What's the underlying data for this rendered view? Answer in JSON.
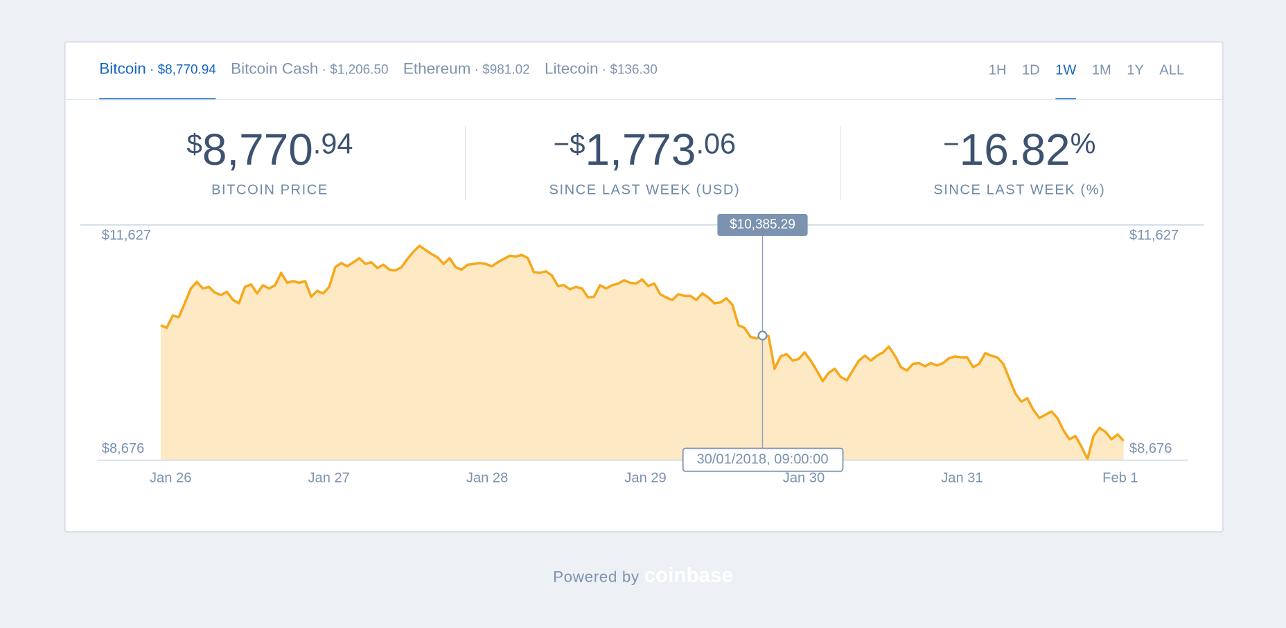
{
  "tab_separator": "·",
  "tabs": [
    {
      "name": "Bitcoin",
      "price": "$8,770.94",
      "active": true
    },
    {
      "name": "Bitcoin Cash",
      "price": "$1,206.50",
      "active": false
    },
    {
      "name": "Ethereum",
      "price": "$981.02",
      "active": false
    },
    {
      "name": "Litecoin",
      "price": "$136.30",
      "active": false
    }
  ],
  "periods": [
    {
      "label": "1H",
      "active": false
    },
    {
      "label": "1D",
      "active": false
    },
    {
      "label": "1W",
      "active": true
    },
    {
      "label": "1M",
      "active": false
    },
    {
      "label": "1Y",
      "active": false
    },
    {
      "label": "ALL",
      "active": false
    }
  ],
  "stats": [
    {
      "prefix": "$",
      "main": "8,770",
      "decimals": ".94",
      "label": "BITCOIN PRICE"
    },
    {
      "prefix": "−$",
      "main": "1,773",
      "decimals": ".06",
      "label": "SINCE LAST WEEK (USD)"
    },
    {
      "prefix": "−",
      "main": "16.82",
      "suffix": "%",
      "label": "SINCE LAST WEEK (%)"
    }
  ],
  "chart_data": {
    "type": "area",
    "color": "#f6a81c",
    "fill": "#fee9c5",
    "x_labels": [
      "Jan 26",
      "Jan 27",
      "Jan 28",
      "Jan 29",
      "Jan 30",
      "Jan 31",
      "Feb 1"
    ],
    "values": [
      10526,
      10492,
      10662,
      10640,
      10833,
      11037,
      11128,
      11037,
      11060,
      10980,
      10946,
      10991,
      10878,
      10833,
      11060,
      11094,
      10969,
      11082,
      11037,
      11082,
      11252,
      11116,
      11139,
      11116,
      11139,
      10923,
      11003,
      10969,
      11060,
      11332,
      11389,
      11343,
      11400,
      11457,
      11377,
      11400,
      11321,
      11366,
      11298,
      11287,
      11332,
      11445,
      11548,
      11627,
      11570,
      11514,
      11468,
      11377,
      11457,
      11332,
      11298,
      11366,
      11377,
      11389,
      11377,
      11343,
      11400,
      11445,
      11491,
      11479,
      11502,
      11457,
      11264,
      11252,
      11275,
      11218,
      11071,
      11082,
      11025,
      11060,
      11037,
      10912,
      10923,
      11082,
      11037,
      11082,
      11105,
      11150,
      11116,
      11105,
      11162,
      11071,
      11105,
      10957,
      10912,
      10878,
      10957,
      10935,
      10935,
      10878,
      10969,
      10912,
      10833,
      10844,
      10901,
      10810,
      10526,
      10492,
      10367,
      10344,
      10385.29,
      10379,
      9925,
      10095,
      10129,
      10038,
      10061,
      10152,
      10038,
      9902,
      9754,
      9868,
      9925,
      9811,
      9766,
      9902,
      10038,
      10106,
      10038,
      10106,
      10152,
      10231,
      10106,
      9947,
      9902,
      9993,
      10004,
      9959,
      10004,
      9970,
      10004,
      10072,
      10095,
      10083,
      10083,
      9947,
      9993,
      10140,
      10106,
      10083,
      9993,
      9788,
      9584,
      9471,
      9516,
      9357,
      9244,
      9289,
      9334,
      9244,
      9073,
      8948,
      8994,
      8846,
      8676,
      8994,
      9107,
      9051,
      8948,
      9017,
      8926
    ],
    "ylim": [
      8676,
      11627
    ],
    "yticks": [
      {
        "value": 8676,
        "label": "$8,676"
      },
      {
        "value": 11627,
        "label": "$11,627"
      }
    ],
    "annotation": {
      "value": 10385.29,
      "label": "$10,385.29",
      "time": "30/01/2018, 09:00:00"
    }
  },
  "footer": {
    "text": "Powered by",
    "brand": "coinbase"
  }
}
